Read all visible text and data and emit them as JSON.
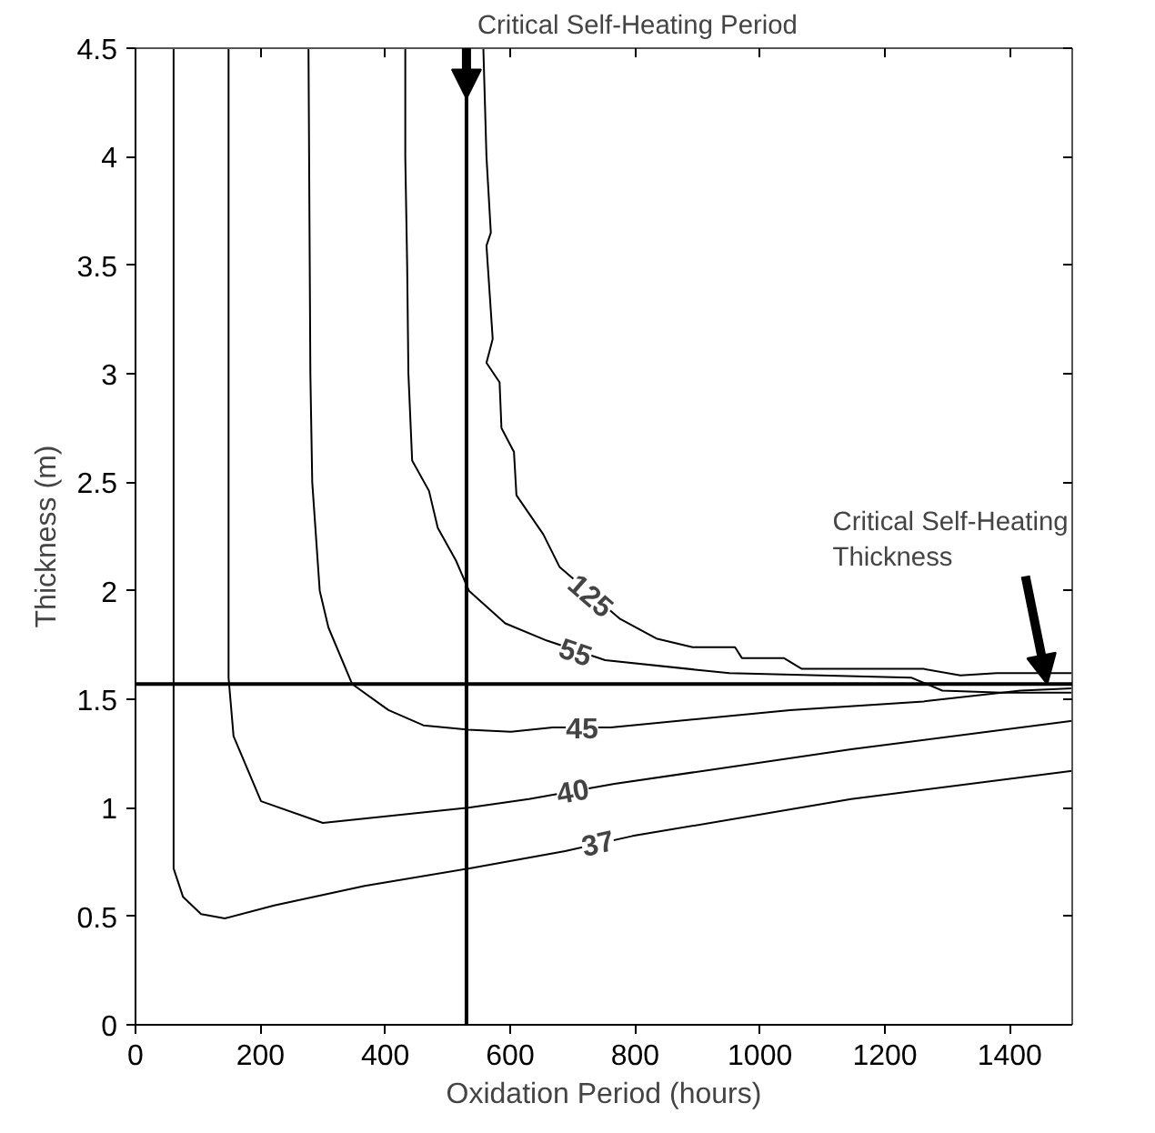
{
  "chart_data": {
    "type": "line",
    "xlabel": "Oxidation Period (hours)",
    "ylabel": "Thickness (m)",
    "xlim": [
      0,
      1500
    ],
    "ylim": [
      0,
      4.5
    ],
    "xticks": [
      0,
      200,
      400,
      600,
      800,
      1000,
      1200,
      1400
    ],
    "yticks": [
      0,
      0.5,
      1,
      1.5,
      2,
      2.5,
      3,
      3.5,
      4,
      4.5
    ],
    "marker": "none",
    "line_style": "solid",
    "series": [
      {
        "color": "#000000",
        "x": [
          61,
          61,
          61,
          76,
          105,
          143,
          222,
          367,
          533,
          688,
          796,
          1146,
          1500
        ],
        "values": [
          4.5,
          1.5,
          0.72,
          0.59,
          0.51,
          0.49,
          0.55,
          0.64,
          0.72,
          0.8,
          0.87,
          1.04,
          1.17
        ]
      },
      {
        "color": "#000000",
        "x": [
          149,
          149,
          157,
          201,
          300,
          533,
          630,
          767,
          1146,
          1500
        ],
        "values": [
          4.5,
          1.6,
          1.33,
          1.03,
          0.93,
          1.0,
          1.04,
          1.11,
          1.27,
          1.4
        ]
      },
      {
        "color": "#000000",
        "x": [
          277,
          280,
          283,
          295,
          309,
          347,
          405,
          461,
          533,
          601,
          668,
          761,
          1048,
          1262,
          1417,
          1500
        ],
        "values": [
          4.5,
          3.0,
          2.5,
          2.0,
          1.83,
          1.57,
          1.45,
          1.38,
          1.36,
          1.35,
          1.37,
          1.37,
          1.45,
          1.49,
          1.54,
          1.55
        ]
      },
      {
        "color": "#000000",
        "x": [
          432,
          432,
          435,
          437,
          443,
          470,
          484,
          513,
          534,
          592,
          659,
          752,
          951,
          1242,
          1292,
          1388,
          1500
        ],
        "values": [
          4.5,
          4.0,
          3.5,
          3.0,
          2.6,
          2.46,
          2.29,
          2.14,
          2.0,
          1.85,
          1.77,
          1.68,
          1.62,
          1.6,
          1.54,
          1.53,
          1.53
        ]
      },
      {
        "color": "#000000",
        "x": [
          557,
          562,
          569,
          562,
          572,
          562,
          583,
          586,
          606,
          610,
          653,
          679,
          776,
          834,
          892,
          960,
          971,
          1038,
          1067,
          1262,
          1321,
          1379,
          1500
        ],
        "values": [
          4.5,
          4.0,
          3.65,
          3.59,
          3.16,
          3.05,
          2.96,
          2.75,
          2.64,
          2.44,
          2.26,
          2.11,
          1.87,
          1.78,
          1.74,
          1.74,
          1.69,
          1.69,
          1.64,
          1.64,
          1.61,
          1.62,
          1.62
        ]
      }
    ],
    "ref_lines": [
      {
        "axis": "x",
        "value": 530,
        "color": "#000000"
      },
      {
        "axis": "y",
        "value": 1.57,
        "color": "#000000"
      }
    ],
    "annotations": [
      {
        "text": "37",
        "x": 740,
        "y": 0.84
      },
      {
        "text": "40",
        "x": 700,
        "y": 1.08
      },
      {
        "text": "45",
        "x": 715,
        "y": 1.37
      },
      {
        "text": "55",
        "x": 705,
        "y": 1.72
      },
      {
        "text": "125",
        "x": 730,
        "y": 1.98
      },
      {
        "text": "Critical Self-Heating Period",
        "x": 530,
        "y": 4.5
      },
      {
        "text": "Critical Self-Heating\nThickness",
        "x": 1460,
        "y": 1.57
      }
    ]
  }
}
